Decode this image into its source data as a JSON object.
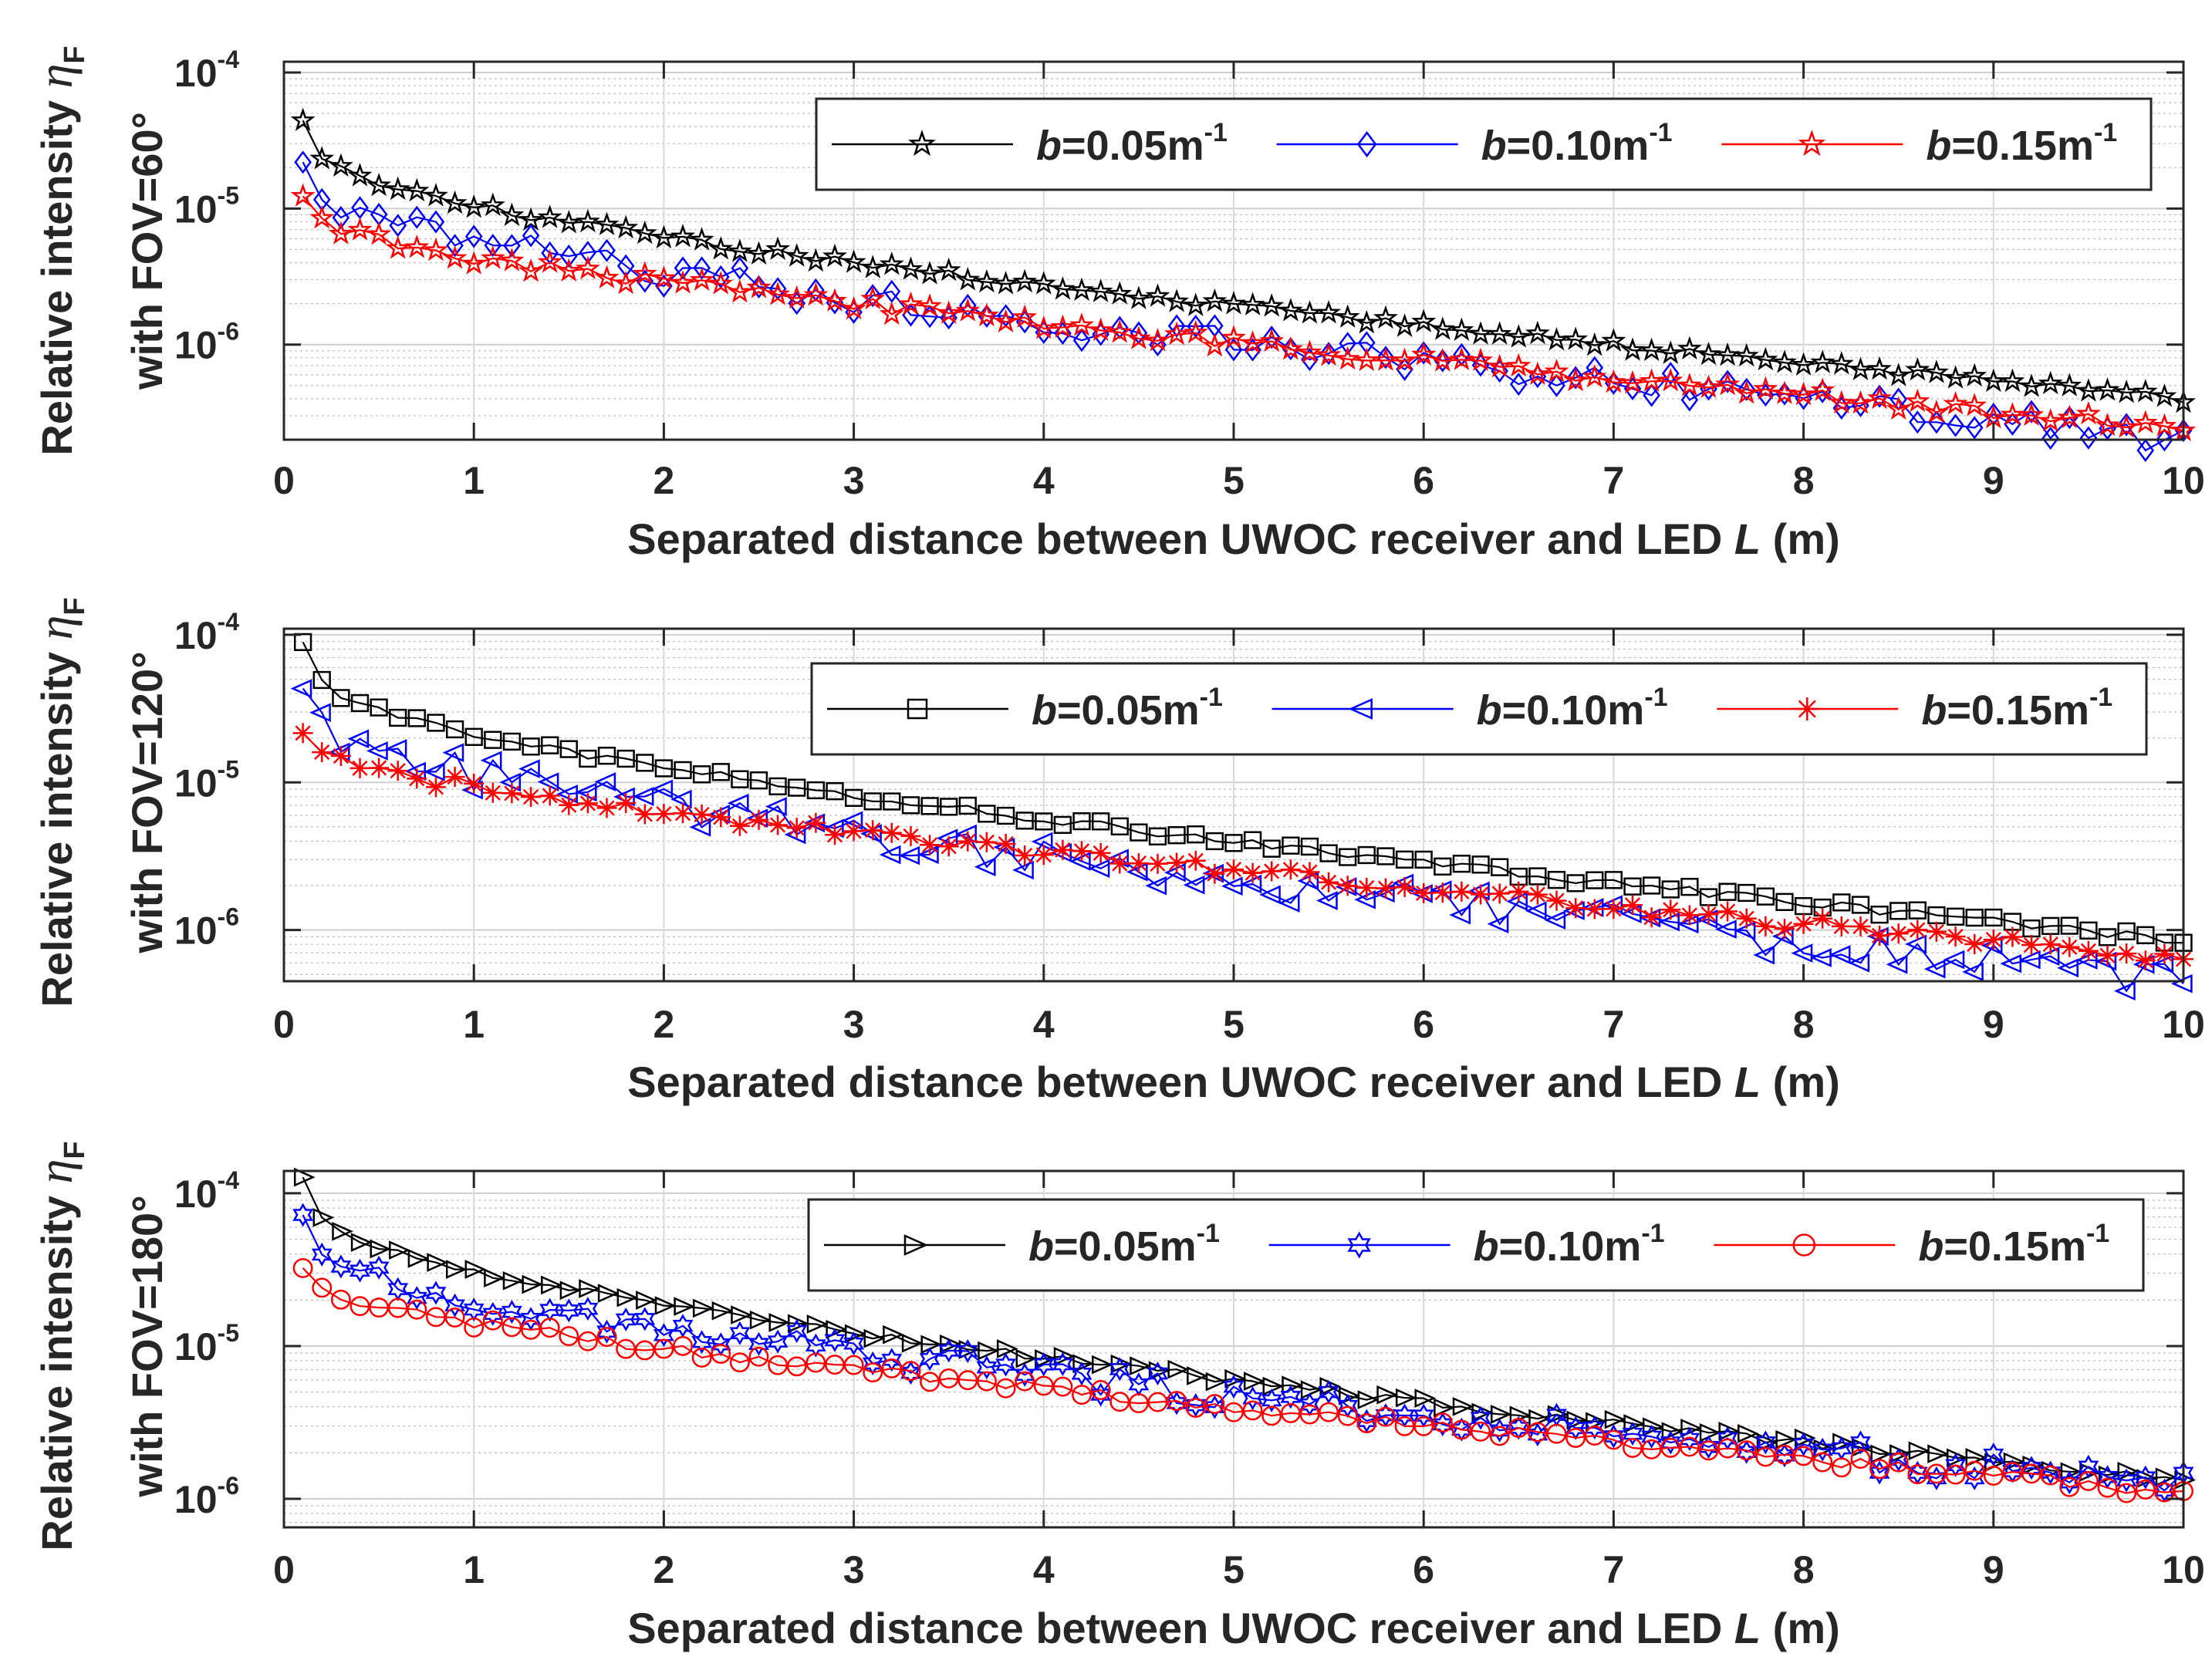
{
  "chart_data": [
    {
      "type": "line",
      "yscale": "log",
      "ylim": [
        2e-07,
        0.00012
      ],
      "xlim": [
        0,
        10
      ],
      "xticks": [
        "0",
        "1",
        "2",
        "3",
        "4",
        "5",
        "6",
        "7",
        "8",
        "9",
        "10"
      ],
      "yticks": [
        {
          "value": 0.0001,
          "base": "10",
          "exp": "-4"
        },
        {
          "value": 1e-05,
          "base": "10",
          "exp": "-5"
        },
        {
          "value": 1e-06,
          "base": "10",
          "exp": "-6"
        }
      ],
      "grid": true,
      "legend_position": "top-right",
      "xlabel_prefix": "Separated distance between UWOC receiver and LED ",
      "xlabel_var": "L",
      "xlabel_suffix": " (m)",
      "ylabel_line1": "Relative intensity ",
      "ylabel_eta": "η",
      "ylabel_eta_sub": "F",
      "ylabel_line2": "with FOV=60°",
      "series": [
        {
          "name_b": "b",
          "name_rest": "=0.05m",
          "name_exp": "-1",
          "color": "#000000",
          "marker": "pentagram",
          "start": 4.5e-05,
          "end": 4e-07,
          "shape": 0.55,
          "noise": 0.03
        },
        {
          "name_b": "b",
          "name_rest": "=0.10m",
          "name_exp": "-1",
          "color": "#0000ff",
          "marker": "diamond",
          "start": 2.3e-05,
          "end": 2e-07,
          "shape": 0.5,
          "noise": 0.12
        },
        {
          "name_b": "b",
          "name_rest": "=0.15m",
          "name_exp": "-1",
          "color": "#ff0000",
          "marker": "pentagram",
          "start": 1.15e-05,
          "end": 2.4e-07,
          "shape": 0.4,
          "noise": 0.05
        }
      ]
    },
    {
      "type": "line",
      "yscale": "log",
      "ylim": [
        4.5e-07,
        0.00011
      ],
      "xlim": [
        0,
        10
      ],
      "xticks": [
        "0",
        "1",
        "2",
        "3",
        "4",
        "5",
        "6",
        "7",
        "8",
        "9",
        "10"
      ],
      "yticks": [
        {
          "value": 0.0001,
          "base": "10",
          "exp": "-4"
        },
        {
          "value": 1e-05,
          "base": "10",
          "exp": "-5"
        },
        {
          "value": 1e-06,
          "base": "10",
          "exp": "-6"
        }
      ],
      "grid": true,
      "legend_position": "top-right",
      "xlabel_prefix": "Separated distance between UWOC receiver and LED ",
      "xlabel_var": "L",
      "xlabel_suffix": " (m)",
      "ylabel_line1": "Relative intensity ",
      "ylabel_eta": "η",
      "ylabel_eta_sub": "F",
      "ylabel_line2": "with FOV=120°",
      "series": [
        {
          "name_b": "b",
          "name_rest": "=0.05m",
          "name_exp": "-1",
          "color": "#000000",
          "marker": "square",
          "start": 9e-05,
          "end": 8.5e-07,
          "shape": 0.55,
          "noise": 0.03
        },
        {
          "name_b": "b",
          "name_rest": "=0.10m",
          "name_exp": "-1",
          "color": "#0000ff",
          "marker": "triangle-left",
          "start": 4.3e-05,
          "end": 4.5e-07,
          "shape": 0.5,
          "noise": 0.12
        },
        {
          "name_b": "b",
          "name_rest": "=0.15m",
          "name_exp": "-1",
          "color": "#ff0000",
          "marker": "asterisk",
          "start": 2.3e-05,
          "end": 6.5e-07,
          "shape": 0.4,
          "noise": 0.05
        }
      ]
    },
    {
      "type": "line",
      "yscale": "log",
      "ylim": [
        6.5e-07,
        0.00014
      ],
      "xlim": [
        0,
        10
      ],
      "xticks": [
        "0",
        "1",
        "2",
        "3",
        "4",
        "5",
        "6",
        "7",
        "8",
        "9",
        "10"
      ],
      "yticks": [
        {
          "value": 0.0001,
          "base": "10",
          "exp": "-4"
        },
        {
          "value": 1e-05,
          "base": "10",
          "exp": "-5"
        },
        {
          "value": 1e-06,
          "base": "10",
          "exp": "-6"
        }
      ],
      "grid": true,
      "legend_position": "top-right",
      "xlabel_prefix": "Separated distance between UWOC receiver and LED ",
      "xlabel_var": "L",
      "xlabel_suffix": " (m)",
      "ylabel_line1": "Relative intensity ",
      "ylabel_eta": "η",
      "ylabel_eta_sub": "F",
      "ylabel_line2": "with FOV=180°",
      "series": [
        {
          "name_b": "b",
          "name_rest": "=0.05m",
          "name_exp": "-1",
          "color": "#000000",
          "marker": "triangle-right",
          "start": 0.00013,
          "end": 1.3e-06,
          "shape": 0.55,
          "noise": 0.03
        },
        {
          "name_b": "b",
          "name_rest": "=0.10m",
          "name_exp": "-1",
          "color": "#0000ff",
          "marker": "hexagram",
          "start": 6.5e-05,
          "end": 1.2e-06,
          "shape": 0.5,
          "noise": 0.1
        },
        {
          "name_b": "b",
          "name_rest": "=0.15m",
          "name_exp": "-1",
          "color": "#ff0000",
          "marker": "circle",
          "start": 3.3e-05,
          "end": 1.1e-06,
          "shape": 0.4,
          "noise": 0.04
        }
      ]
    }
  ]
}
